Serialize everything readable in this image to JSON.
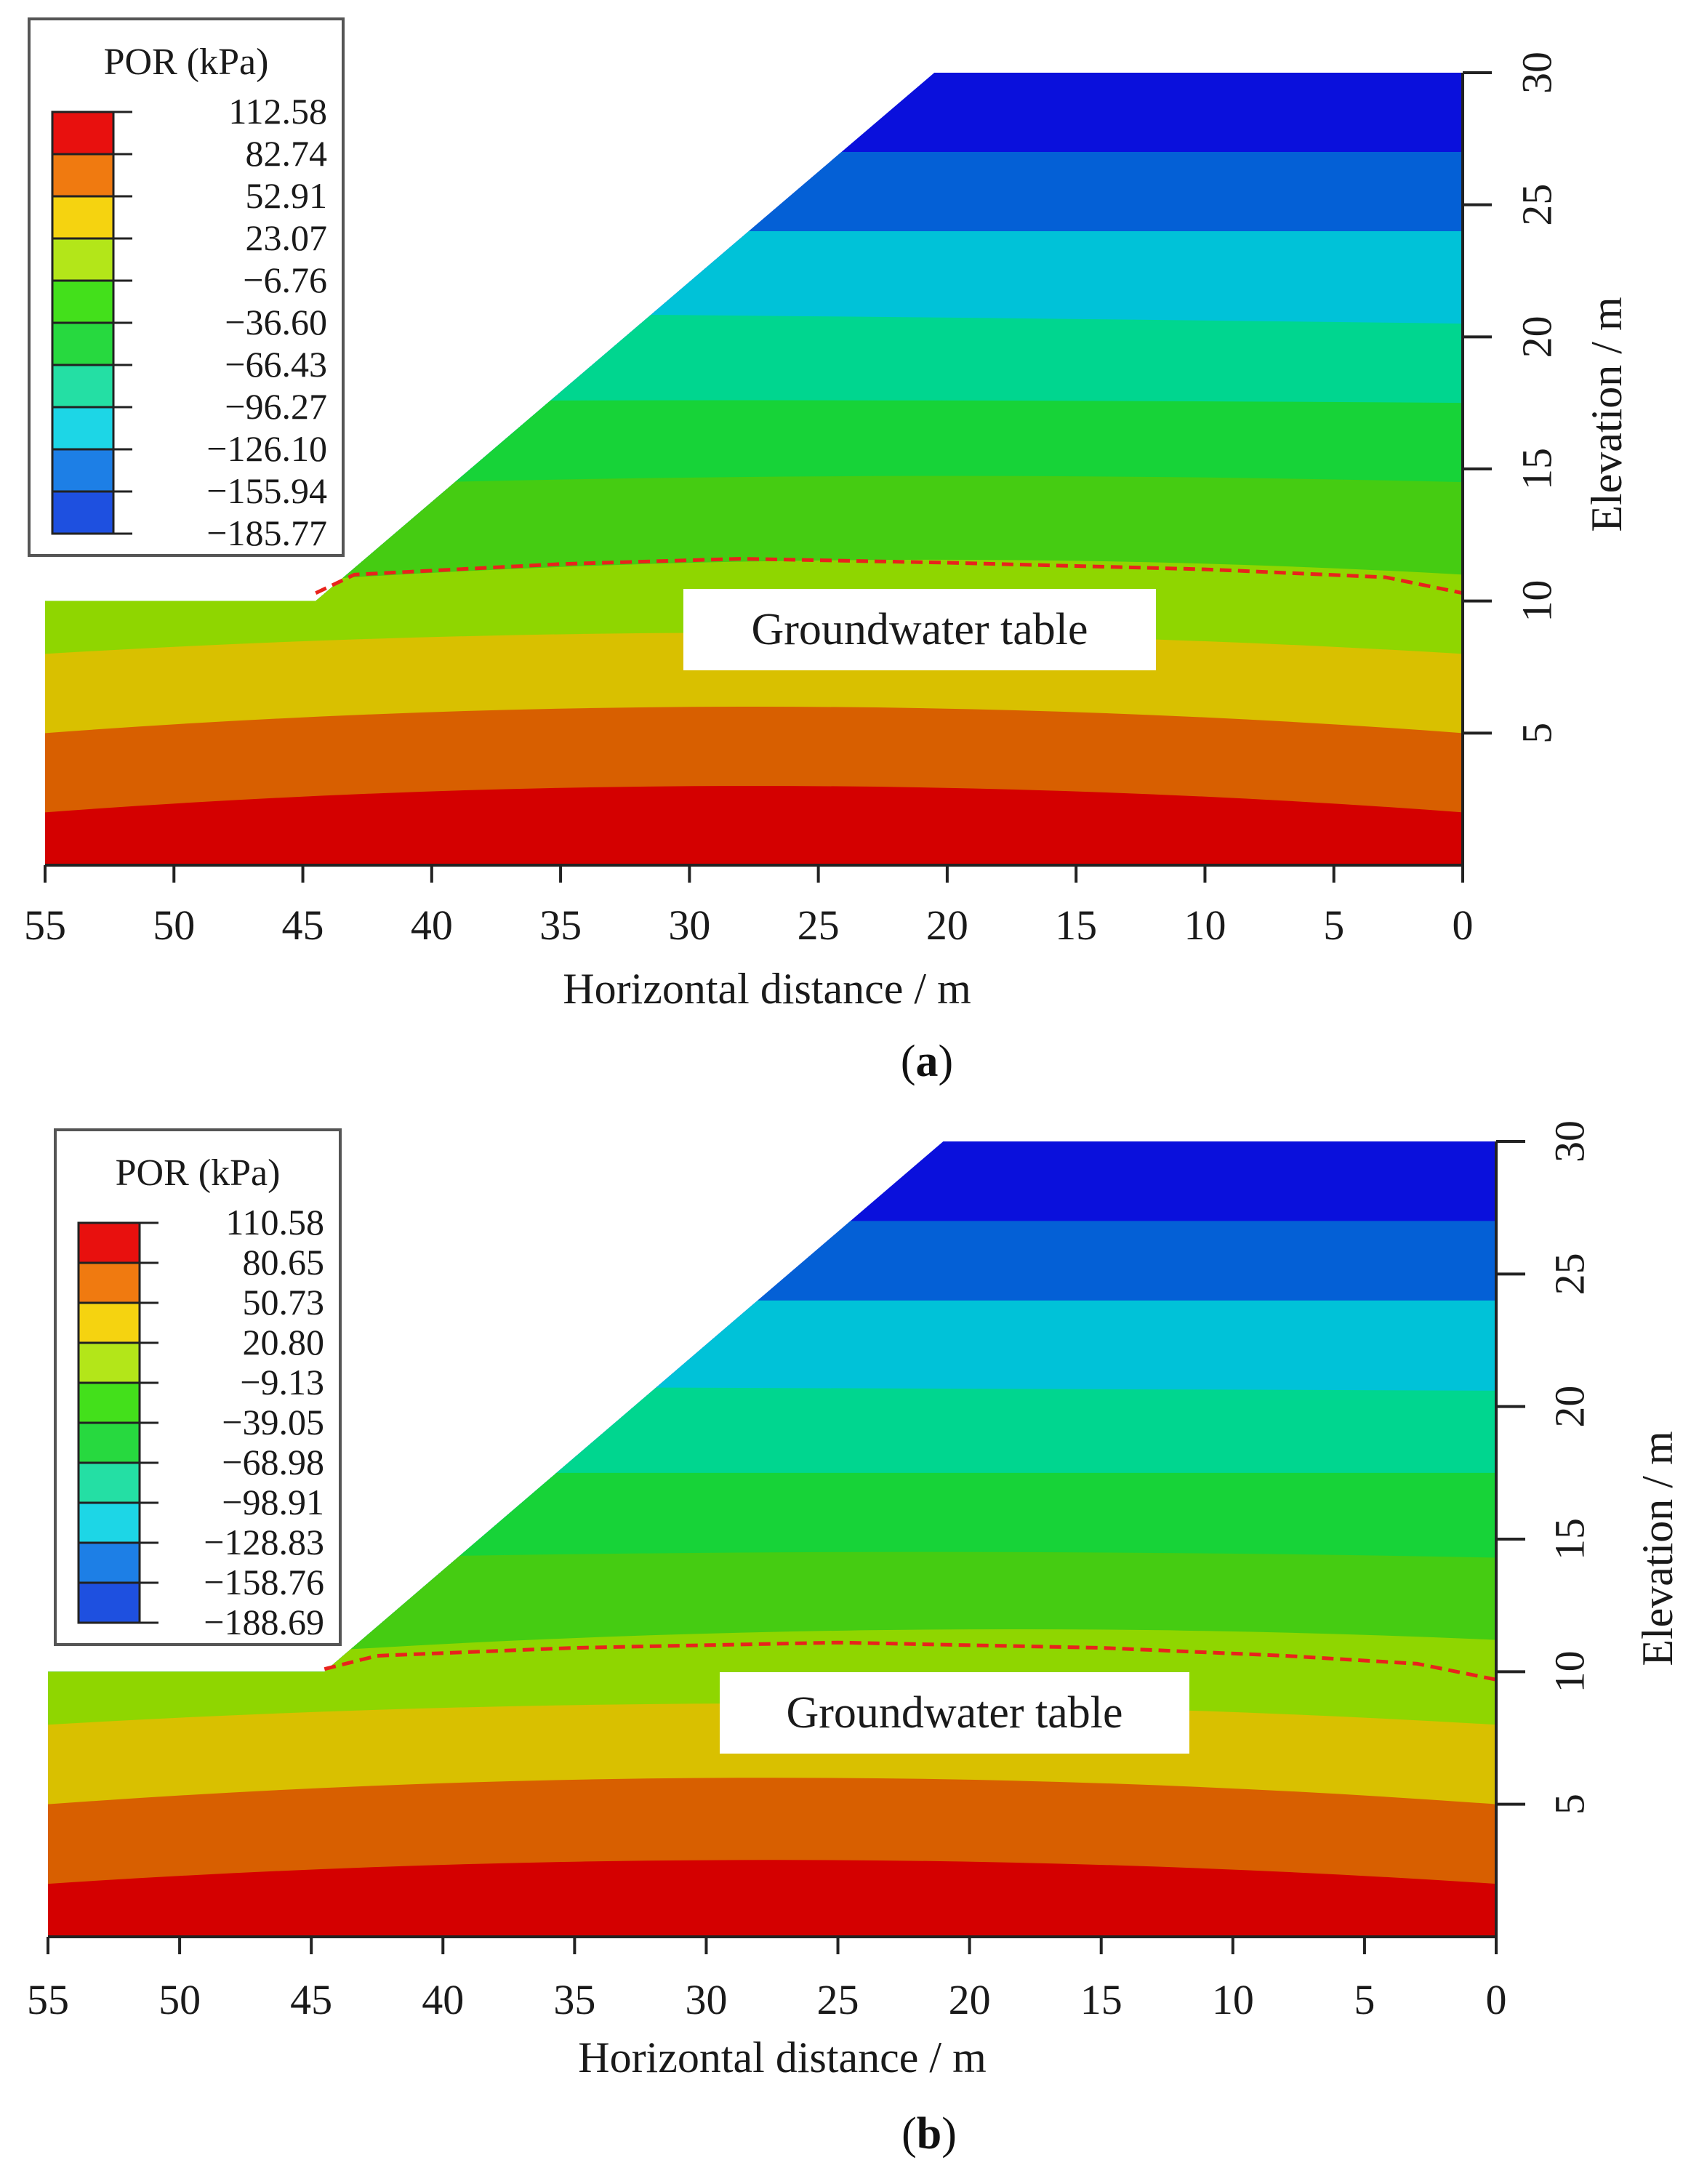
{
  "chart_data": [
    {
      "id": "a",
      "type": "heatmap",
      "panel_label": "a",
      "legend": {
        "title": "POR (kPa)",
        "levels": [
          "112.58",
          "82.74",
          "52.91",
          "23.07",
          "−6.76",
          "−36.60",
          "−66.43",
          "−96.27",
          "−126.10",
          "−155.94",
          "−185.77"
        ],
        "colors": [
          "#e8100e",
          "#f07a10",
          "#f5d310",
          "#b3e619",
          "#43e01b",
          "#27d93f",
          "#24dfa4",
          "#1dd6e6",
          "#1d7fe6",
          "#1e50e0",
          "#2a18e8"
        ]
      },
      "xlabel": "Horizontal distance / m",
      "ylabel": "Elevation / m",
      "xlim": [
        55,
        0
      ],
      "ylim": [
        0,
        30
      ],
      "xticks": [
        55,
        50,
        45,
        40,
        35,
        30,
        25,
        20,
        15,
        10,
        5,
        0
      ],
      "yticks": [
        5,
        10,
        15,
        20,
        25,
        30
      ],
      "slope": {
        "toe_x": 44.5,
        "toe_y": 10,
        "crest_x": 20.5,
        "crest_y": 30
      },
      "bands": [
        {
          "top_left": 2,
          "top_mid": 3,
          "top_right": 2,
          "color": "#d40000"
        },
        {
          "top_left": 5,
          "top_mid": 6,
          "top_right": 5,
          "color": "#d85f00"
        },
        {
          "top_left": 8,
          "top_mid": 8.8,
          "top_right": 8,
          "color": "#d9c000"
        },
        {
          "top_left": 10,
          "top_mid": 11.5,
          "top_right": 11,
          "color": "#8fd600"
        },
        {
          "top_left": 14,
          "top_mid": 14.7,
          "top_right": 14.5,
          "color": "#45cc12"
        },
        {
          "top_left": 17.5,
          "top_mid": 17.6,
          "top_right": 17.5,
          "color": "#17d338"
        },
        {
          "top_left": 21,
          "top_mid": 20.8,
          "top_right": 20.5,
          "color": "#00d68f"
        },
        {
          "top_left": 24,
          "top_mid": 24,
          "top_right": 24,
          "color": "#00c2d8"
        },
        {
          "top_left": 27,
          "top_mid": 27,
          "top_right": 27,
          "color": "#0460d6"
        },
        {
          "top_left": 30,
          "top_mid": 30,
          "top_right": 30,
          "color": "#0a10dc"
        }
      ],
      "groundwater": {
        "label": "Groundwater table",
        "points": [
          [
            44.5,
            10.3
          ],
          [
            43,
            11
          ],
          [
            35,
            11.4
          ],
          [
            28,
            11.6
          ],
          [
            20,
            11.45
          ],
          [
            10,
            11.2
          ],
          [
            3,
            10.9
          ],
          [
            0,
            10.3
          ]
        ]
      }
    },
    {
      "id": "b",
      "type": "heatmap",
      "panel_label": "b",
      "legend": {
        "title": "POR (kPa)",
        "levels": [
          "110.58",
          "80.65",
          "50.73",
          "20.80",
          "−9.13",
          "−39.05",
          "−68.98",
          "−98.91",
          "−128.83",
          "−158.76",
          "−188.69"
        ],
        "colors": [
          "#e8100e",
          "#f07a10",
          "#f5d310",
          "#b3e619",
          "#43e01b",
          "#27d93f",
          "#24dfa4",
          "#1dd6e6",
          "#1d7fe6",
          "#1e50e0",
          "#2a18e8"
        ]
      },
      "xlabel": "Horizontal distance / m",
      "ylabel": "Elevation / m",
      "xlim": [
        55,
        0
      ],
      "ylim": [
        0,
        30
      ],
      "xticks": [
        55,
        50,
        45,
        40,
        35,
        30,
        25,
        20,
        15,
        10,
        5,
        0
      ],
      "yticks": [
        5,
        10,
        15,
        20,
        25,
        30
      ],
      "slope": {
        "toe_x": 44.5,
        "toe_y": 10,
        "crest_x": 21,
        "crest_y": 30
      },
      "bands": [
        {
          "top_left": 2,
          "top_mid": 2.9,
          "top_right": 2,
          "color": "#d40000"
        },
        {
          "top_left": 5,
          "top_mid": 6,
          "top_right": 5,
          "color": "#d85f00"
        },
        {
          "top_left": 8,
          "top_mid": 8.8,
          "top_right": 8,
          "color": "#d9c000"
        },
        {
          "top_left": 10,
          "top_mid": 11.5,
          "top_right": 11.2,
          "color": "#8fd600"
        },
        {
          "top_left": 14,
          "top_mid": 14.5,
          "top_right": 14.3,
          "color": "#45cc12"
        },
        {
          "top_left": 17.5,
          "top_mid": 17.5,
          "top_right": 17.5,
          "color": "#17d338"
        },
        {
          "top_left": 20.8,
          "top_mid": 20.7,
          "top_right": 20.6,
          "color": "#00d68f"
        },
        {
          "top_left": 24,
          "top_mid": 24,
          "top_right": 24,
          "color": "#00c2d8"
        },
        {
          "top_left": 27,
          "top_mid": 27,
          "top_right": 27,
          "color": "#0460d6"
        },
        {
          "top_left": 30,
          "top_mid": 30,
          "top_right": 30,
          "color": "#0a10dc"
        }
      ],
      "groundwater": {
        "label": "Groundwater table",
        "points": [
          [
            44.5,
            10.1
          ],
          [
            42.5,
            10.6
          ],
          [
            35,
            10.9
          ],
          [
            25,
            11.1
          ],
          [
            15,
            10.9
          ],
          [
            8,
            10.6
          ],
          [
            3,
            10.3
          ],
          [
            0,
            9.7
          ]
        ]
      }
    }
  ]
}
